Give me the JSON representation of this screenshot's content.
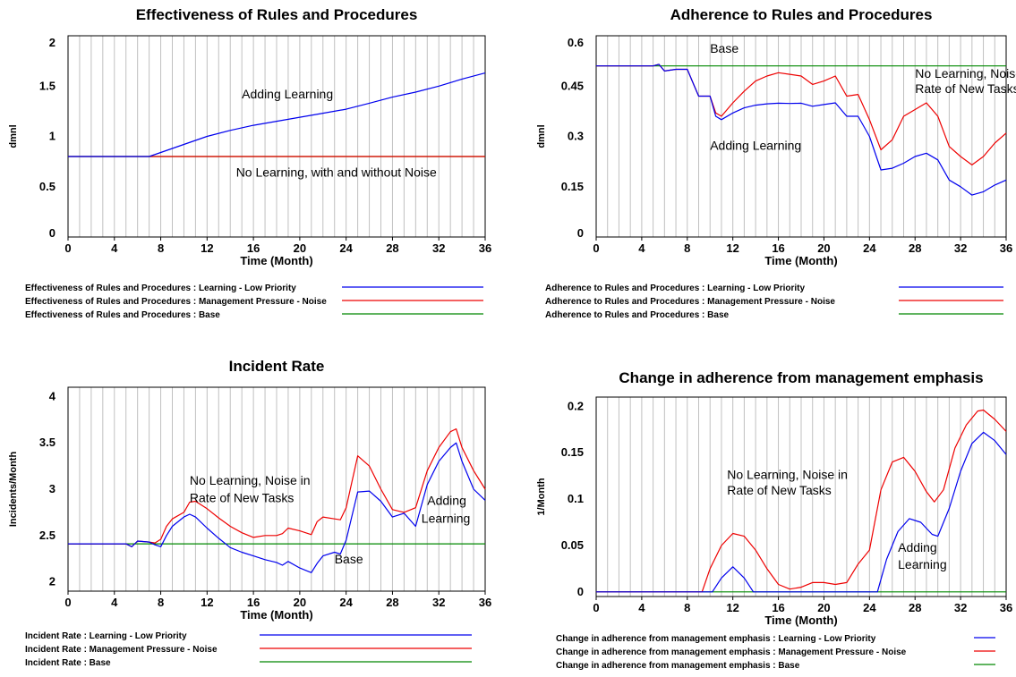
{
  "colors": {
    "learning": "#0000ee",
    "pressure": "#ee0000",
    "base": "#008800",
    "grid": "#c0c0c0",
    "frame": "#000000"
  },
  "chart_data": [
    {
      "type": "line",
      "title": "Effectiveness of Rules and Procedures",
      "xlabel": "Time (Month)",
      "ylabel": "dmnl",
      "xlim": [
        0,
        36
      ],
      "ylim": [
        0,
        2
      ],
      "xticks": [
        0,
        4,
        8,
        12,
        16,
        20,
        24,
        28,
        32,
        36
      ],
      "yticks": [
        0,
        0.5,
        1,
        1.5,
        2
      ],
      "ytick_labels": [
        "0",
        "0.5",
        "1",
        "1.5",
        "2"
      ],
      "grid": true,
      "series": [
        {
          "key": "learning",
          "name": "Effectiveness of Rules and Procedures : Learning - Low Priority",
          "x": [
            0,
            7,
            8,
            10,
            12,
            14,
            16,
            18,
            20,
            22,
            24,
            26,
            28,
            30,
            32,
            34,
            36
          ],
          "y": [
            0.8,
            0.8,
            0.84,
            0.92,
            1.0,
            1.06,
            1.11,
            1.15,
            1.19,
            1.23,
            1.27,
            1.33,
            1.39,
            1.44,
            1.5,
            1.57,
            1.63
          ]
        },
        {
          "key": "pressure",
          "name": "Effectiveness of Rules and Procedures : Management Pressure - Noise",
          "x": [
            0,
            36
          ],
          "y": [
            0.8,
            0.8
          ]
        },
        {
          "key": "base",
          "name": "Effectiveness of Rules and Procedures : Base",
          "x": [
            0,
            36
          ],
          "y": [
            0.8,
            0.8
          ]
        }
      ],
      "annotations": [
        {
          "text": "Adding Learning",
          "x": 15,
          "y": 1.38
        },
        {
          "text": "No Learning, with and without Noise",
          "x": 14.5,
          "y": 0.6
        }
      ]
    },
    {
      "type": "line",
      "title": "Adherence to Rules and Procedures",
      "xlabel": "Time (Month)",
      "ylabel": "dmnl",
      "xlim": [
        0,
        36
      ],
      "ylim": [
        0,
        0.6
      ],
      "xticks": [
        0,
        4,
        8,
        12,
        16,
        20,
        24,
        28,
        32,
        36
      ],
      "yticks": [
        0,
        0.15,
        0.3,
        0.45,
        0.6
      ],
      "ytick_labels": [
        "0",
        "0.15",
        "0.3",
        "0.45",
        "0.6"
      ],
      "grid": true,
      "series": [
        {
          "key": "learning",
          "name": "Adherence to Rules and Procedures : Learning - Low Priority",
          "x": [
            0,
            5,
            5.5,
            6,
            7,
            8,
            8.5,
            9,
            9.5,
            10,
            10.5,
            11,
            12,
            13,
            14,
            15,
            16,
            17,
            18,
            19,
            20,
            21,
            22,
            23,
            24,
            25,
            26,
            27,
            28,
            29,
            30,
            31,
            32,
            33,
            34,
            35,
            36
          ],
          "y": [
            0.51,
            0.51,
            0.515,
            0.495,
            0.5,
            0.5,
            0.46,
            0.42,
            0.42,
            0.42,
            0.36,
            0.35,
            0.37,
            0.385,
            0.393,
            0.397,
            0.399,
            0.398,
            0.399,
            0.39,
            0.395,
            0.4,
            0.36,
            0.36,
            0.3,
            0.2,
            0.205,
            0.22,
            0.24,
            0.25,
            0.23,
            0.17,
            0.15,
            0.125,
            0.135,
            0.155,
            0.17
          ]
        },
        {
          "key": "pressure",
          "name": "Adherence to Rules and Procedures : Management Pressure - Noise",
          "x": [
            0,
            5,
            5.5,
            6,
            7,
            8,
            8.5,
            9,
            9.5,
            10,
            10.5,
            11,
            12,
            13,
            14,
            15,
            16,
            17,
            18,
            19,
            20,
            21,
            22,
            23,
            24,
            25,
            26,
            27,
            28,
            29,
            30,
            31,
            32,
            33,
            34,
            35,
            36
          ],
          "y": [
            0.51,
            0.51,
            0.515,
            0.495,
            0.5,
            0.5,
            0.46,
            0.42,
            0.42,
            0.42,
            0.37,
            0.36,
            0.4,
            0.435,
            0.465,
            0.48,
            0.49,
            0.485,
            0.48,
            0.455,
            0.465,
            0.48,
            0.42,
            0.425,
            0.35,
            0.26,
            0.29,
            0.36,
            0.38,
            0.4,
            0.36,
            0.27,
            0.24,
            0.215,
            0.24,
            0.28,
            0.31
          ]
        },
        {
          "key": "base",
          "name": "Adherence to Rules and Procedures : Base",
          "x": [
            0,
            36
          ],
          "y": [
            0.51,
            0.51
          ]
        }
      ],
      "annotations": [
        {
          "text": "Base",
          "x": 10,
          "y": 0.55
        },
        {
          "text": "No Learning, Noise in",
          "x": 28,
          "y": 0.475
        },
        {
          "text": "Rate of New Tasks",
          "x": 28,
          "y": 0.43
        },
        {
          "text": "Adding Learning",
          "x": 10,
          "y": 0.26
        }
      ]
    },
    {
      "type": "line",
      "title": "Incident Rate",
      "xlabel": "Time (Month)",
      "ylabel": "Incidents/Month",
      "xlim": [
        0,
        36
      ],
      "ylim": [
        1.9,
        4.1
      ],
      "xticks": [
        0,
        4,
        8,
        12,
        16,
        20,
        24,
        28,
        32,
        36
      ],
      "yticks": [
        2,
        2.5,
        3,
        3.5,
        4
      ],
      "ytick_labels": [
        "2",
        "2.5",
        "3",
        "3.5",
        "4"
      ],
      "grid": true,
      "series": [
        {
          "key": "learning",
          "name": "Incident Rate : Learning - Low Priority",
          "x": [
            0,
            5,
            5.5,
            6,
            7,
            7.5,
            8,
            8.5,
            9,
            10,
            10.5,
            11,
            12,
            13,
            14,
            15,
            16,
            17,
            18,
            18.5,
            19,
            20,
            21,
            21.5,
            22,
            23,
            23.5,
            24,
            25,
            26,
            27,
            28,
            29,
            30,
            31,
            32,
            33,
            33.5,
            34,
            35,
            36
          ],
          "y": [
            2.41,
            2.41,
            2.38,
            2.44,
            2.43,
            2.4,
            2.38,
            2.5,
            2.6,
            2.7,
            2.73,
            2.7,
            2.58,
            2.47,
            2.37,
            2.32,
            2.28,
            2.24,
            2.21,
            2.18,
            2.22,
            2.15,
            2.1,
            2.2,
            2.28,
            2.32,
            2.3,
            2.45,
            2.97,
            2.98,
            2.87,
            2.7,
            2.74,
            2.6,
            3.05,
            3.3,
            3.45,
            3.5,
            3.3,
            3.0,
            2.88
          ]
        },
        {
          "key": "pressure",
          "name": "Incident Rate : Management Pressure - Noise",
          "x": [
            0,
            5,
            5.5,
            6,
            7,
            7.5,
            8,
            8.5,
            9,
            10,
            10.5,
            11,
            12,
            13,
            14,
            15,
            16,
            17,
            18,
            18.5,
            19,
            20,
            21,
            21.5,
            22,
            23,
            23.5,
            24,
            25,
            26,
            27,
            28,
            29,
            30,
            31,
            32,
            33,
            33.5,
            34,
            35,
            36
          ],
          "y": [
            2.41,
            2.41,
            2.38,
            2.44,
            2.43,
            2.42,
            2.46,
            2.6,
            2.68,
            2.75,
            2.86,
            2.87,
            2.79,
            2.69,
            2.6,
            2.53,
            2.48,
            2.5,
            2.5,
            2.52,
            2.58,
            2.55,
            2.51,
            2.65,
            2.7,
            2.68,
            2.67,
            2.8,
            3.36,
            3.25,
            3.0,
            2.78,
            2.75,
            2.8,
            3.2,
            3.45,
            3.62,
            3.65,
            3.45,
            3.2,
            3.0
          ]
        },
        {
          "key": "base",
          "name": "Incident Rate : Base",
          "x": [
            0,
            36
          ],
          "y": [
            2.41,
            2.41
          ]
        }
      ],
      "annotations": [
        {
          "text": "No Learning, Noise in",
          "x": 10.5,
          "y": 3.05
        },
        {
          "text": "Rate of New Tasks",
          "x": 10.5,
          "y": 2.86
        },
        {
          "text": "Adding",
          "x": 31,
          "y": 2.83
        },
        {
          "text": "Learning",
          "x": 30.5,
          "y": 2.64
        },
        {
          "text": "Base",
          "x": 23,
          "y": 2.2
        }
      ]
    },
    {
      "type": "line",
      "title": "Change in adherence from management emphasis",
      "xlabel": "Time (Month)",
      "ylabel": "1/Month",
      "xlim": [
        0,
        36
      ],
      "ylim": [
        -0.005,
        0.21
      ],
      "xticks": [
        0,
        4,
        8,
        12,
        16,
        20,
        24,
        28,
        32,
        36
      ],
      "yticks": [
        0,
        0.05,
        0.1,
        0.15,
        0.2
      ],
      "ytick_labels": [
        "0",
        "0.05",
        "0.1",
        "0.15",
        "0.2"
      ],
      "grid": true,
      "series": [
        {
          "key": "learning",
          "name": "Change in adherence from management emphasis : Learning - Low Priority",
          "x": [
            0,
            10.2,
            11,
            12,
            13,
            13.8,
            14.5,
            24.7,
            25.5,
            26.5,
            27.5,
            28.5,
            29.5,
            30,
            31,
            32,
            33,
            34,
            35,
            36
          ],
          "y": [
            0,
            0,
            0.015,
            0.027,
            0.015,
            0,
            0,
            0,
            0.035,
            0.065,
            0.079,
            0.075,
            0.062,
            0.06,
            0.09,
            0.13,
            0.16,
            0.172,
            0.163,
            0.148
          ]
        },
        {
          "key": "pressure",
          "name": "Change in adherence from management emphasis : Management Pressure - Noise",
          "x": [
            0,
            9.3,
            10,
            11,
            12,
            13,
            14,
            15,
            16,
            17,
            18,
            19,
            20,
            21,
            22,
            23,
            24,
            25,
            26,
            27,
            28,
            29,
            29.7,
            30.5,
            31.5,
            32.5,
            33.5,
            34,
            35,
            36
          ],
          "y": [
            0,
            0,
            0.025,
            0.05,
            0.063,
            0.06,
            0.045,
            0.025,
            0.008,
            0.003,
            0.005,
            0.01,
            0.01,
            0.008,
            0.01,
            0.03,
            0.045,
            0.11,
            0.14,
            0.145,
            0.13,
            0.108,
            0.097,
            0.11,
            0.155,
            0.18,
            0.195,
            0.196,
            0.186,
            0.173
          ]
        },
        {
          "key": "base",
          "name": "Change in adherence from management emphasis : Base",
          "x": [
            0,
            36
          ],
          "y": [
            0,
            0
          ]
        }
      ],
      "annotations": [
        {
          "text": "No Learning, Noise in",
          "x": 11.5,
          "y": 0.122
        },
        {
          "text": "Rate of New Tasks",
          "x": 11.5,
          "y": 0.105
        },
        {
          "text": "Adding",
          "x": 26.5,
          "y": 0.043
        },
        {
          "text": "Learning",
          "x": 26.5,
          "y": 0.025
        }
      ]
    }
  ]
}
